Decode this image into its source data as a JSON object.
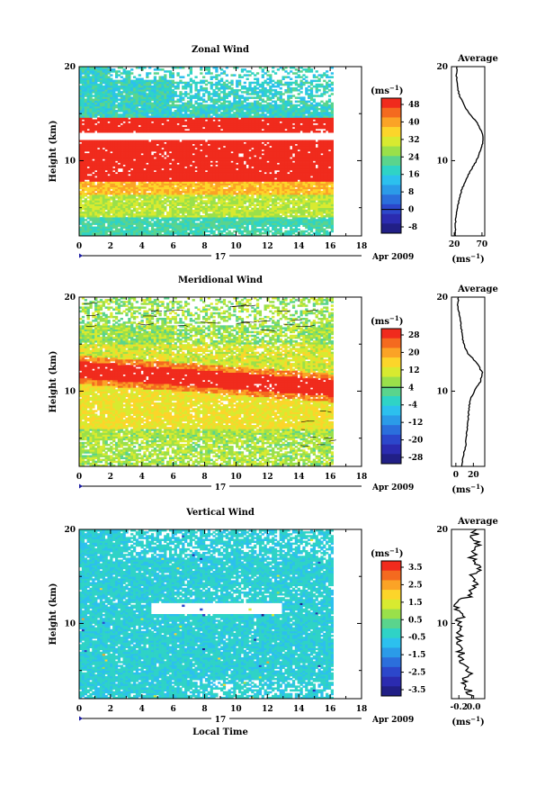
{
  "chart_data": [
    {
      "type": "heatmap",
      "title": "Zonal Wind",
      "ylabel": "Height (km)",
      "xlim": [
        0,
        18
      ],
      "ylim": [
        2,
        20
      ],
      "x_ticks": [
        "0",
        "2",
        "4",
        "6",
        "8",
        "10",
        "12",
        "14",
        "16",
        "18"
      ],
      "y_ticks": [
        "10",
        "20"
      ],
      "date_label": "17",
      "month_label": "Apr 2009",
      "colorbar": {
        "unit_label": "(ms",
        "unit_sup": "−1",
        "unit_close": ")",
        "tick_labels": [
          "48",
          "40",
          "32",
          "24",
          "16",
          "8",
          "0",
          "-8"
        ],
        "colors": [
          "#f02b1d",
          "#f46a1f",
          "#fba326",
          "#fcd52a",
          "#d8ea30",
          "#9ae04a",
          "#5ad48d",
          "#2fd3c6",
          "#2cc0ee",
          "#2b9be8",
          "#2b6fdc",
          "#2c47cb",
          "#2b2bb0",
          "#211f86"
        ]
      },
      "profile": {
        "title": "Average",
        "x_ticks": [
          "20",
          "70"
        ],
        "xlim": [
          15,
          75
        ],
        "xlabel": "(ms",
        "xlabel_sup": "−1",
        "xlabel_close": ")",
        "points": [
          [
            22,
            2
          ],
          [
            22,
            3
          ],
          [
            23,
            4
          ],
          [
            26,
            5
          ],
          [
            29,
            6
          ],
          [
            34,
            7
          ],
          [
            41,
            8
          ],
          [
            50,
            9
          ],
          [
            60,
            10
          ],
          [
            67,
            11
          ],
          [
            72,
            12
          ],
          [
            70,
            13
          ],
          [
            62,
            14
          ],
          [
            47,
            15
          ],
          [
            37,
            16
          ],
          [
            29,
            17
          ],
          [
            25,
            18
          ],
          [
            24,
            19
          ],
          [
            25,
            20
          ]
        ]
      }
    },
    {
      "type": "heatmap",
      "title": "Meridional Wind",
      "ylabel": "Height (km)",
      "xlim": [
        0,
        18
      ],
      "ylim": [
        2,
        20
      ],
      "x_ticks": [
        "0",
        "2",
        "4",
        "6",
        "8",
        "10",
        "12",
        "14",
        "16",
        "18"
      ],
      "y_ticks": [
        "10",
        "20"
      ],
      "date_label": "17",
      "month_label": "Apr 2009",
      "colorbar": {
        "unit_label": "(ms",
        "unit_sup": "−1",
        "unit_close": ")",
        "tick_labels": [
          "28",
          "20",
          "12",
          "4",
          "-4",
          "-12",
          "-20",
          "-28"
        ],
        "colors": [
          "#f02b1d",
          "#f46a1f",
          "#fba326",
          "#fcd52a",
          "#d8ea30",
          "#9ae04a",
          "#5ad48d",
          "#2fd3c6",
          "#2cc0ee",
          "#2b9be8",
          "#2b6fdc",
          "#2c47cb",
          "#2b2bb0",
          "#211f86"
        ]
      },
      "profile": {
        "title": "Average",
        "x_ticks": [
          "0",
          "20"
        ],
        "xlim": [
          -5,
          33
        ],
        "xlabel": "(ms",
        "xlabel_sup": "−1",
        "xlabel_close": ")",
        "points": [
          [
            7,
            2
          ],
          [
            8,
            3
          ],
          [
            11,
            4
          ],
          [
            12,
            5
          ],
          [
            13,
            6
          ],
          [
            14,
            7
          ],
          [
            15,
            8
          ],
          [
            16,
            9
          ],
          [
            21,
            10
          ],
          [
            28,
            11
          ],
          [
            30,
            12
          ],
          [
            24,
            13
          ],
          [
            14,
            14
          ],
          [
            9,
            15
          ],
          [
            7,
            16
          ],
          [
            6,
            17
          ],
          [
            4,
            18
          ],
          [
            2,
            19
          ],
          [
            3,
            20
          ]
        ]
      }
    },
    {
      "type": "heatmap",
      "title": "Vertical Wind",
      "ylabel": "Height (km)",
      "xlabel": "Local Time",
      "xlim": [
        0,
        18
      ],
      "ylim": [
        2,
        20
      ],
      "x_ticks": [
        "0",
        "2",
        "4",
        "6",
        "8",
        "10",
        "12",
        "14",
        "16",
        "18"
      ],
      "y_ticks": [
        "10",
        "20"
      ],
      "date_label": "17",
      "month_label": "Apr 2009",
      "colorbar": {
        "unit_label": "(ms",
        "unit_sup": "−1",
        "unit_close": ")",
        "tick_labels": [
          "3.5",
          "2.5",
          "1.5",
          "0.5",
          "-0.5",
          "-1.5",
          "-2.5",
          "-3.5"
        ],
        "colors": [
          "#f02b1d",
          "#f46a1f",
          "#fba326",
          "#fcd52a",
          "#d8ea30",
          "#9ae04a",
          "#5ad48d",
          "#2fd3c6",
          "#2cc0ee",
          "#2b9be8",
          "#2b6fdc",
          "#2c47cb",
          "#2b2bb0",
          "#211f86"
        ]
      },
      "profile": {
        "title": "Average",
        "x_ticks": [
          "-0.2",
          "0.0"
        ],
        "xlim": [
          -0.3,
          0.15
        ],
        "xlabel": "(ms",
        "xlabel_sup": "−1",
        "xlabel_close": ")",
        "points": [
          [
            -0.05,
            2
          ],
          [
            -0.08,
            3
          ],
          [
            -0.12,
            4
          ],
          [
            -0.05,
            5
          ],
          [
            -0.15,
            6
          ],
          [
            -0.18,
            7
          ],
          [
            -0.2,
            8
          ],
          [
            -0.21,
            9
          ],
          [
            -0.22,
            10
          ],
          [
            -0.16,
            11
          ],
          [
            -0.25,
            12
          ],
          [
            -0.05,
            13
          ],
          [
            0.02,
            14
          ],
          [
            -0.03,
            15
          ],
          [
            0.08,
            16
          ],
          [
            -0.04,
            17
          ],
          [
            0.07,
            18
          ],
          [
            0.0,
            19
          ],
          [
            0.04,
            20
          ]
        ]
      }
    }
  ]
}
